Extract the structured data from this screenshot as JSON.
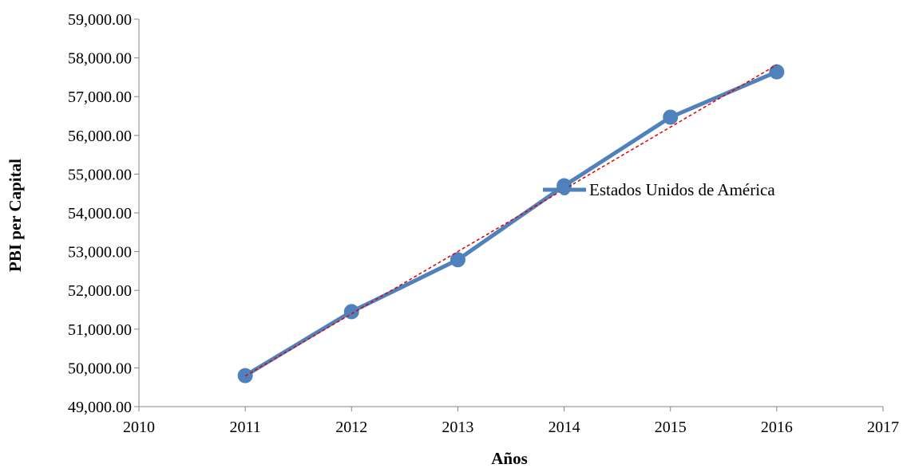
{
  "chart_data": {
    "type": "line",
    "title": "",
    "xlabel": "Años",
    "ylabel": "PBI per Capital",
    "xlim": [
      2010,
      2017
    ],
    "ylim": [
      49000,
      59000
    ],
    "x_ticks": [
      2010,
      2011,
      2012,
      2013,
      2014,
      2015,
      2016,
      2017
    ],
    "x_tick_labels": [
      "2010",
      "2011",
      "2012",
      "2013",
      "2014",
      "2015",
      "2016",
      "2017"
    ],
    "y_ticks": [
      49000,
      50000,
      51000,
      52000,
      53000,
      54000,
      55000,
      56000,
      57000,
      58000,
      59000
    ],
    "y_tick_labels": [
      "49,000.00",
      "50,000.00",
      "51,000.00",
      "52,000.00",
      "53,000.00",
      "54,000.00",
      "55,000.00",
      "56,000.00",
      "57,000.00",
      "58,000.00",
      "59,000.00"
    ],
    "grid": false,
    "legend_position": "right",
    "series": [
      {
        "name": "Estados Unidos de América",
        "color": "#4f81bd",
        "x": [
          2011,
          2012,
          2013,
          2014,
          2015,
          2016
        ],
        "values": [
          49800,
          51450,
          52790,
          54700,
          56470,
          57640
        ]
      }
    ],
    "trendline": {
      "kind": "linear",
      "color": "#e00000",
      "style": "dashed",
      "x": [
        2011,
        2016
      ],
      "values": [
        49790,
        57820
      ]
    }
  }
}
